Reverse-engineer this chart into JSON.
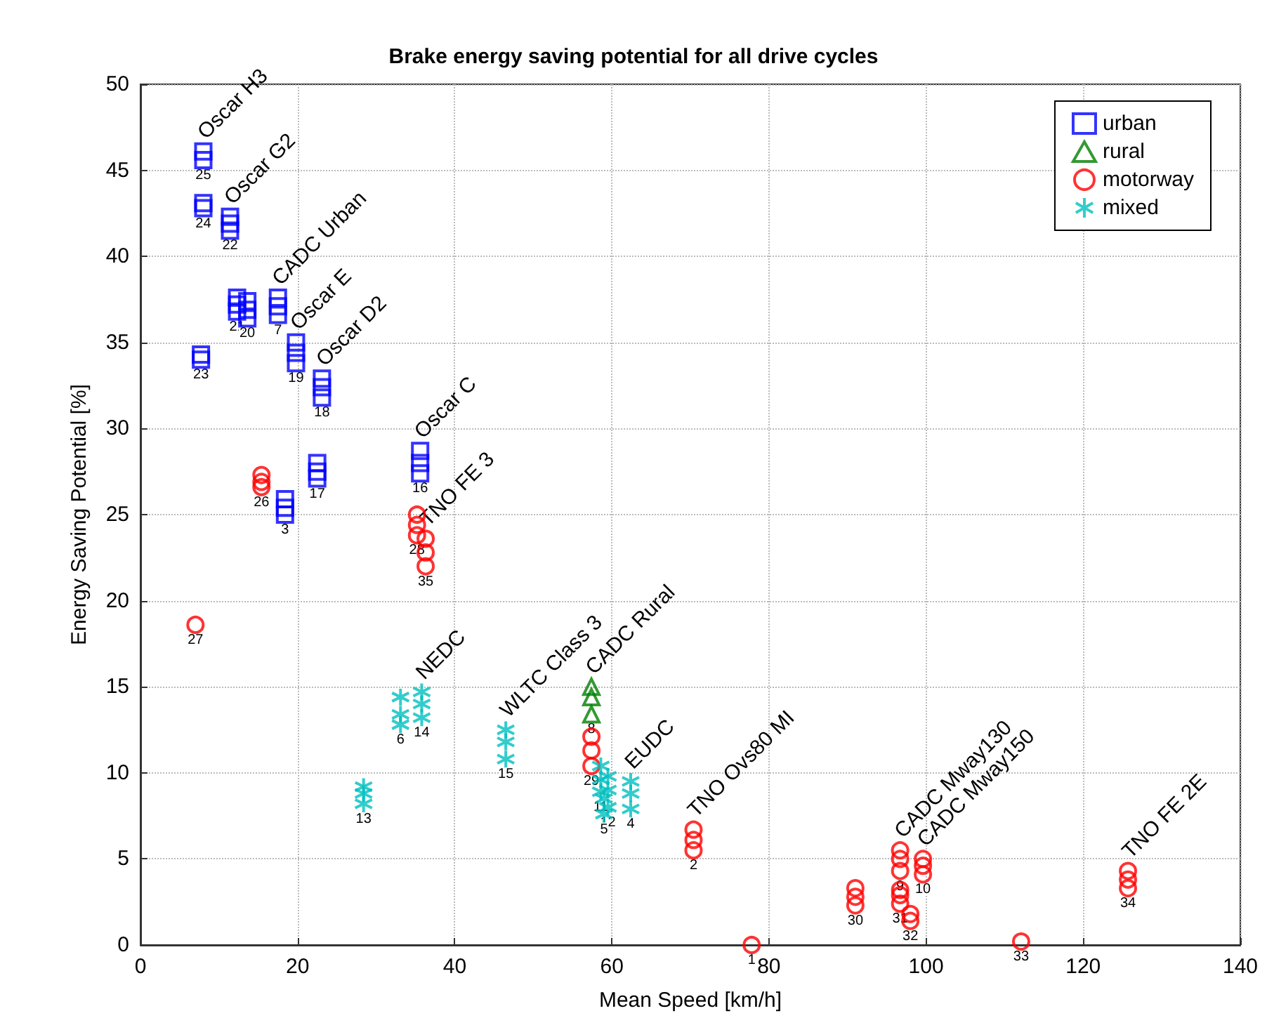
{
  "chart_data": {
    "type": "scatter",
    "title": "Brake energy saving potential for all drive cycles",
    "xlabel": "Mean Speed [km/h]",
    "ylabel": "Energy Saving Potential [%]",
    "xlim": [
      0,
      140
    ],
    "xticks": [
      0,
      20,
      40,
      60,
      80,
      100,
      120,
      140
    ],
    "ylim": [
      0,
      50
    ],
    "yticks": [
      0,
      5,
      10,
      15,
      20,
      25,
      30,
      35,
      40,
      45,
      50
    ],
    "grid": true,
    "legend": "top right",
    "series": [
      {
        "name": "urban",
        "color": "#0000ff",
        "marker": "square",
        "x": [
          8.0,
          8.0,
          8.0,
          8.0,
          11.4,
          11.4,
          11.4,
          12.3,
          12.3,
          12.3,
          13.6,
          13.6,
          13.6,
          17.5,
          17.5,
          17.5,
          7.7,
          7.7,
          19.8,
          19.8,
          19.8,
          23.1,
          23.1,
          23.1,
          22.5,
          22.5,
          22.5,
          18.4,
          18.4,
          18.4,
          35.6,
          35.6,
          35.6
        ],
        "values": [
          46.1,
          45.6,
          43.1,
          42.8,
          42.3,
          41.9,
          41.5,
          37.6,
          37.2,
          36.8,
          37.4,
          36.9,
          36.4,
          37.6,
          37.1,
          36.6,
          34.3,
          34.0,
          35.0,
          34.4,
          33.8,
          32.9,
          32.4,
          31.8,
          28.0,
          27.5,
          27.1,
          25.9,
          25.4,
          25.0,
          28.7,
          28.0,
          27.4
        ]
      },
      {
        "name": "rural",
        "color": "#008000",
        "marker": "triangle",
        "x": [
          57.4,
          57.4,
          57.4
        ],
        "values": [
          15.0,
          14.4,
          13.4
        ]
      },
      {
        "name": "motorway",
        "color": "#ff0000",
        "marker": "circle",
        "x": [
          15.4,
          15.4,
          15.4,
          7.0,
          35.2,
          35.2,
          35.2,
          36.3,
          36.3,
          36.3,
          57.4,
          57.4,
          57.4,
          70.4,
          70.4,
          70.4,
          77.8,
          91.0,
          91.0,
          91.0,
          96.7,
          96.7,
          96.7,
          96.7,
          96.7,
          96.7,
          98.0,
          98.0,
          99.6,
          99.6,
          99.6,
          112.1,
          125.7,
          125.7,
          125.7
        ],
        "values": [
          27.3,
          26.9,
          26.6,
          18.6,
          25.0,
          24.4,
          23.8,
          23.6,
          22.8,
          22.0,
          12.1,
          11.3,
          10.4,
          6.7,
          6.1,
          5.5,
          0,
          3.3,
          2.8,
          2.3,
          5.5,
          5.0,
          4.3,
          3.2,
          2.9,
          2.4,
          1.8,
          1.4,
          5.0,
          4.6,
          4.1,
          0.2,
          4.3,
          3.8,
          3.3
        ]
      },
      {
        "name": "mixed",
        "color": "#00bfbf",
        "marker": "cross",
        "x": [
          33.1,
          33.1,
          33.1,
          35.8,
          35.8,
          35.8,
          28.4,
          28.4,
          28.4,
          46.5,
          46.5,
          46.5,
          58.6,
          58.6,
          58.6,
          59.5,
          59.5,
          59.5,
          59.0,
          59.0,
          62.4,
          62.4,
          62.4
        ],
        "values": [
          14.4,
          13.4,
          12.8,
          14.7,
          14.0,
          13.2,
          9.2,
          8.8,
          8.2,
          12.5,
          11.8,
          10.8,
          10.4,
          9.6,
          8.9,
          9.8,
          9.0,
          8.0,
          8.5,
          7.6,
          9.5,
          8.8,
          7.9
        ]
      }
    ],
    "annotations": [
      {
        "text": "Oscar H3",
        "x": 8.0,
        "y": 46.1
      },
      {
        "text": "Oscar G2",
        "x": 11.4,
        "y": 42.3
      },
      {
        "text": "CADC Urban",
        "x": 17.5,
        "y": 37.6
      },
      {
        "text": "Oscar E",
        "x": 19.8,
        "y": 35.0
      },
      {
        "text": "Oscar D2",
        "x": 23.1,
        "y": 32.9
      },
      {
        "text": "Oscar C",
        "x": 35.6,
        "y": 28.7
      },
      {
        "text": "TNO FE 3",
        "x": 36.3,
        "y": 23.6
      },
      {
        "text": "NEDC",
        "x": 35.8,
        "y": 14.7
      },
      {
        "text": "WLTC Class 3",
        "x": 46.5,
        "y": 12.5
      },
      {
        "text": "CADC Rural",
        "x": 57.4,
        "y": 15.0
      },
      {
        "text": "EUDC",
        "x": 62.4,
        "y": 9.5
      },
      {
        "text": "TNO Ovs80 MI",
        "x": 70.4,
        "y": 6.7
      },
      {
        "text": "CADC Mway130",
        "x": 96.7,
        "y": 5.5
      },
      {
        "text": "CADC Mway150",
        "x": 99.6,
        "y": 5.0
      },
      {
        "text": "TNO FE 2E",
        "x": 125.7,
        "y": 4.3
      },
      {
        "text": "25",
        "x": 8.0,
        "y": 45.6
      },
      {
        "text": "24",
        "x": 8.0,
        "y": 42.8
      },
      {
        "text": "22",
        "x": 11.4,
        "y": 41.5
      },
      {
        "text": "21",
        "x": 12.3,
        "y": 36.8
      },
      {
        "text": "20",
        "x": 13.6,
        "y": 36.4
      },
      {
        "text": "7",
        "x": 17.5,
        "y": 36.6
      },
      {
        "text": "23",
        "x": 7.7,
        "y": 34.0
      },
      {
        "text": "19",
        "x": 19.8,
        "y": 33.8
      },
      {
        "text": "18",
        "x": 23.1,
        "y": 31.8
      },
      {
        "text": "17",
        "x": 22.5,
        "y": 27.1
      },
      {
        "text": "3",
        "x": 18.4,
        "y": 25.0
      },
      {
        "text": "16",
        "x": 35.6,
        "y": 27.4
      },
      {
        "text": "8",
        "x": 57.4,
        "y": 13.4
      },
      {
        "text": "26",
        "x": 15.4,
        "y": 26.6
      },
      {
        "text": "27",
        "x": 7.0,
        "y": 18.6
      },
      {
        "text": "28",
        "x": 35.2,
        "y": 23.8
      },
      {
        "text": "35",
        "x": 36.3,
        "y": 22.0
      },
      {
        "text": "29",
        "x": 57.4,
        "y": 10.4
      },
      {
        "text": "2",
        "x": 70.4,
        "y": 5.5
      },
      {
        "text": "1",
        "x": 77.8,
        "y": 0
      },
      {
        "text": "30",
        "x": 91.0,
        "y": 2.3
      },
      {
        "text": "9",
        "x": 96.7,
        "y": 4.3
      },
      {
        "text": "31",
        "x": 96.7,
        "y": 2.4
      },
      {
        "text": "32",
        "x": 98.0,
        "y": 1.4
      },
      {
        "text": "10",
        "x": 99.6,
        "y": 4.1
      },
      {
        "text": "33",
        "x": 112.1,
        "y": 0.2
      },
      {
        "text": "34",
        "x": 125.7,
        "y": 3.3
      },
      {
        "text": "6",
        "x": 33.1,
        "y": 12.8
      },
      {
        "text": "14",
        "x": 35.8,
        "y": 13.2
      },
      {
        "text": "13",
        "x": 28.4,
        "y": 8.2
      },
      {
        "text": "15",
        "x": 46.5,
        "y": 10.8
      },
      {
        "text": "11",
        "x": 58.6,
        "y": 8.9
      },
      {
        "text": "12",
        "x": 59.5,
        "y": 8.0
      },
      {
        "text": "5",
        "x": 59.0,
        "y": 7.6
      },
      {
        "text": "4",
        "x": 62.4,
        "y": 7.9
      }
    ]
  }
}
